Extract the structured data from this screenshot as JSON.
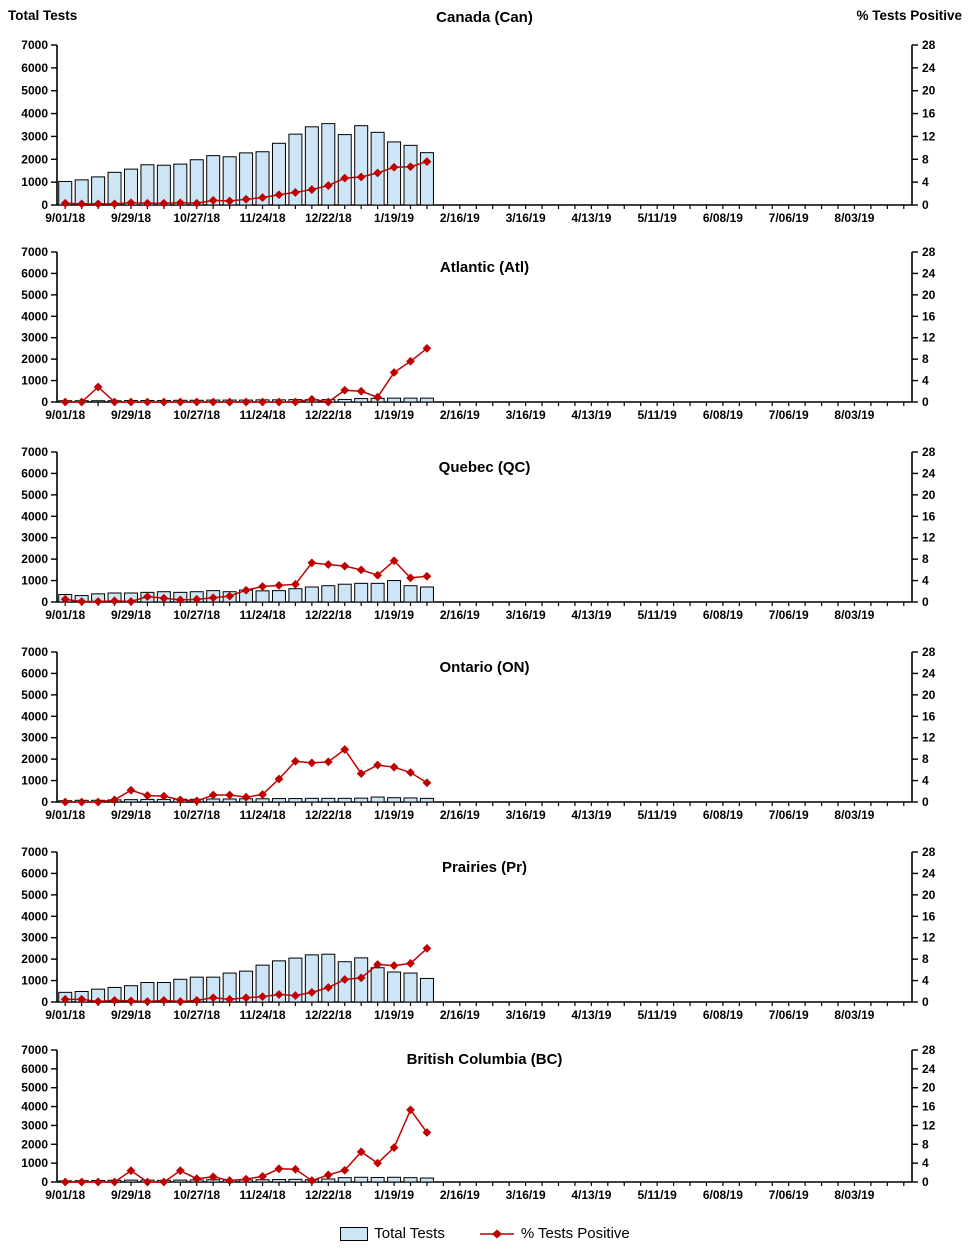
{
  "axes": {
    "left_axis_header": "Total Tests",
    "right_axis_header": "% Tests Positive",
    "left_axis_ticks": [
      0,
      1000,
      2000,
      3000,
      4000,
      5000,
      6000,
      7000
    ],
    "right_axis_ticks": [
      0,
      4,
      8,
      12,
      16,
      20,
      24,
      28
    ],
    "left_axis_range": [
      0,
      7000
    ],
    "right_axis_range": [
      0,
      28
    ],
    "x_axis_labels": [
      "9/01/18",
      "9/29/18",
      "10/27/18",
      "11/24/18",
      "12/22/18",
      "1/19/19",
      "2/16/19",
      "3/16/19",
      "4/13/19",
      "5/11/19",
      "6/08/19",
      "7/06/19",
      "8/03/19"
    ],
    "x_label_every_n_weeks": 4,
    "weeks_shown_on_axis": 52
  },
  "legend": {
    "items": [
      {
        "label": "Total Tests",
        "type": "bar"
      },
      {
        "label": "% Tests Positive",
        "type": "line"
      }
    ]
  },
  "colors": {
    "bar_fill": "#cde6f5",
    "bar_stroke": "#000000",
    "line_color": "#c00000",
    "axis_color": "#000000",
    "text_color": "#000000"
  },
  "chart_data": [
    {
      "type": "combo",
      "title": "Canada (Can)",
      "region_code": "Can",
      "categories": [
        "9/01/18",
        "9/08/18",
        "9/15/18",
        "9/22/18",
        "9/29/18",
        "10/06/18",
        "10/13/18",
        "10/20/18",
        "10/27/18",
        "11/03/18",
        "11/10/18",
        "11/17/18",
        "11/24/18",
        "12/01/18",
        "12/08/18",
        "12/15/18",
        "12/22/18",
        "12/29/18",
        "1/05/19",
        "1/12/19",
        "1/19/19",
        "1/26/19",
        "2/02/19"
      ],
      "series": [
        {
          "name": "Total Tests",
          "type": "bar",
          "axis": "left",
          "values": [
            1030,
            1100,
            1230,
            1430,
            1570,
            1760,
            1740,
            1790,
            1980,
            2160,
            2110,
            2280,
            2330,
            2700,
            3100,
            3420,
            3560,
            3080,
            3470,
            3180,
            2760,
            2610,
            2290
          ]
        },
        {
          "name": "% Tests Positive",
          "type": "line",
          "axis": "right",
          "values": [
            0.3,
            0.2,
            0.2,
            0.2,
            0.4,
            0.3,
            0.3,
            0.4,
            0.3,
            0.8,
            0.7,
            1.0,
            1.3,
            1.8,
            2.2,
            2.7,
            3.4,
            4.7,
            4.9,
            5.6,
            6.6,
            6.7,
            7.6
          ]
        }
      ],
      "ylim_left": [
        0,
        7000
      ],
      "ylim_right": [
        0,
        28
      ]
    },
    {
      "type": "combo",
      "title": "Atlantic (Atl)",
      "region_code": "Atl",
      "categories": [
        "9/01/18",
        "9/08/18",
        "9/15/18",
        "9/22/18",
        "9/29/18",
        "10/06/18",
        "10/13/18",
        "10/20/18",
        "10/27/18",
        "11/03/18",
        "11/10/18",
        "11/17/18",
        "11/24/18",
        "12/01/18",
        "12/08/18",
        "12/15/18",
        "12/22/18",
        "12/29/18",
        "1/05/19",
        "1/12/19",
        "1/19/19",
        "1/26/19",
        "2/02/19"
      ],
      "series": [
        {
          "name": "Total Tests",
          "type": "bar",
          "axis": "left",
          "values": [
            60,
            60,
            60,
            60,
            70,
            70,
            70,
            80,
            80,
            90,
            90,
            90,
            100,
            100,
            110,
            110,
            110,
            120,
            160,
            170,
            180,
            180,
            180
          ]
        },
        {
          "name": "% Tests Positive",
          "type": "line",
          "axis": "right",
          "values": [
            0,
            0,
            2.8,
            0,
            0,
            0,
            0,
            0,
            0,
            0,
            0,
            0,
            0,
            0,
            0,
            0.5,
            0,
            2.2,
            2.0,
            0.9,
            5.5,
            7.6,
            10.0
          ]
        }
      ],
      "ylim_left": [
        0,
        7000
      ],
      "ylim_right": [
        0,
        28
      ]
    },
    {
      "type": "combo",
      "title": "Quebec (QC)",
      "region_code": "QC",
      "categories": [
        "9/01/18",
        "9/08/18",
        "9/15/18",
        "9/22/18",
        "9/29/18",
        "10/06/18",
        "10/13/18",
        "10/20/18",
        "10/27/18",
        "11/03/18",
        "11/10/18",
        "11/17/18",
        "11/24/18",
        "12/01/18",
        "12/08/18",
        "12/15/18",
        "12/22/18",
        "12/29/18",
        "1/05/19",
        "1/12/19",
        "1/19/19",
        "1/26/19",
        "2/02/19"
      ],
      "series": [
        {
          "name": "Total Tests",
          "type": "bar",
          "axis": "left",
          "values": [
            350,
            300,
            380,
            420,
            420,
            450,
            480,
            450,
            480,
            530,
            480,
            560,
            520,
            530,
            620,
            700,
            760,
            830,
            870,
            870,
            1000,
            760,
            700
          ]
        },
        {
          "name": "% Tests Positive",
          "type": "line",
          "axis": "right",
          "values": [
            0.5,
            0.1,
            0.1,
            0.2,
            0.1,
            1.0,
            0.7,
            0.4,
            0.5,
            0.8,
            1.1,
            2.2,
            2.9,
            3.1,
            3.3,
            7.3,
            7.0,
            6.7,
            6.0,
            5.0,
            7.7,
            4.5,
            4.8
          ]
        }
      ],
      "ylim_left": [
        0,
        7000
      ],
      "ylim_right": [
        0,
        28
      ]
    },
    {
      "type": "combo",
      "title": "Ontario (ON)",
      "region_code": "ON",
      "categories": [
        "9/01/18",
        "9/08/18",
        "9/15/18",
        "9/22/18",
        "9/29/18",
        "10/06/18",
        "10/13/18",
        "10/20/18",
        "10/27/18",
        "11/03/18",
        "11/10/18",
        "11/17/18",
        "11/24/18",
        "12/01/18",
        "12/08/18",
        "12/15/18",
        "12/22/18",
        "12/29/18",
        "1/05/19",
        "1/12/19",
        "1/19/19",
        "1/26/19",
        "2/02/19"
      ],
      "series": [
        {
          "name": "Total Tests",
          "type": "bar",
          "axis": "left",
          "values": [
            60,
            80,
            80,
            100,
            110,
            120,
            120,
            130,
            130,
            140,
            140,
            150,
            150,
            160,
            160,
            170,
            170,
            170,
            180,
            230,
            200,
            190,
            170
          ]
        },
        {
          "name": "% Tests Positive",
          "type": "line",
          "axis": "right",
          "values": [
            0,
            0,
            0,
            0.4,
            2.2,
            1.2,
            1.1,
            0.4,
            0.2,
            1.3,
            1.3,
            0.9,
            1.4,
            4.3,
            7.6,
            7.3,
            7.5,
            9.8,
            5.3,
            6.9,
            6.5,
            5.5,
            3.6
          ]
        }
      ],
      "ylim_left": [
        0,
        7000
      ],
      "ylim_right": [
        0,
        28
      ]
    },
    {
      "type": "combo",
      "title": "Prairies (Pr)",
      "region_code": "Pr",
      "categories": [
        "9/01/18",
        "9/08/18",
        "9/15/18",
        "9/22/18",
        "9/29/18",
        "10/06/18",
        "10/13/18",
        "10/20/18",
        "10/27/18",
        "11/03/18",
        "11/10/18",
        "11/17/18",
        "11/24/18",
        "12/01/18",
        "12/08/18",
        "12/15/18",
        "12/22/18",
        "12/29/18",
        "1/05/19",
        "1/12/19",
        "1/19/19",
        "1/26/19",
        "2/02/19"
      ],
      "series": [
        {
          "name": "Total Tests",
          "type": "bar",
          "axis": "left",
          "values": [
            450,
            490,
            600,
            680,
            760,
            910,
            910,
            1060,
            1160,
            1160,
            1350,
            1440,
            1720,
            1920,
            2050,
            2200,
            2230,
            1880,
            2060,
            1600,
            1400,
            1350,
            1100
          ]
        },
        {
          "name": "% Tests Positive",
          "type": "line",
          "axis": "right",
          "values": [
            0.5,
            0.5,
            0.1,
            0.3,
            0.2,
            0.1,
            0.3,
            0.1,
            0.3,
            0.8,
            0.5,
            0.8,
            1.0,
            1.4,
            1.2,
            1.8,
            2.7,
            4.2,
            4.5,
            7.0,
            6.8,
            7.2,
            10.0
          ]
        }
      ],
      "ylim_left": [
        0,
        7000
      ],
      "ylim_right": [
        0,
        28
      ]
    },
    {
      "type": "combo",
      "title": "British Columbia (BC)",
      "region_code": "BC",
      "categories": [
        "9/01/18",
        "9/08/18",
        "9/15/18",
        "9/22/18",
        "9/29/18",
        "10/06/18",
        "10/13/18",
        "10/20/18",
        "10/27/18",
        "11/03/18",
        "11/10/18",
        "11/17/18",
        "11/24/18",
        "12/01/18",
        "12/08/18",
        "12/15/18",
        "12/22/18",
        "12/29/18",
        "1/05/19",
        "1/12/19",
        "1/19/19",
        "1/26/19",
        "2/02/19"
      ],
      "series": [
        {
          "name": "Total Tests",
          "type": "bar",
          "axis": "left",
          "values": [
            60,
            70,
            80,
            90,
            100,
            100,
            90,
            100,
            110,
            120,
            110,
            110,
            120,
            130,
            140,
            120,
            160,
            230,
            250,
            240,
            250,
            230,
            210
          ]
        },
        {
          "name": "% Tests Positive",
          "type": "line",
          "axis": "right",
          "values": [
            0,
            0,
            0,
            0,
            2.4,
            0,
            0,
            2.4,
            0.7,
            1.1,
            0.3,
            0.6,
            1.2,
            2.8,
            2.7,
            0.3,
            1.5,
            2.5,
            6.4,
            4.0,
            7.3,
            15.3,
            10.5
          ]
        }
      ],
      "ylim_left": [
        0,
        7000
      ],
      "ylim_right": [
        0,
        28
      ]
    }
  ]
}
